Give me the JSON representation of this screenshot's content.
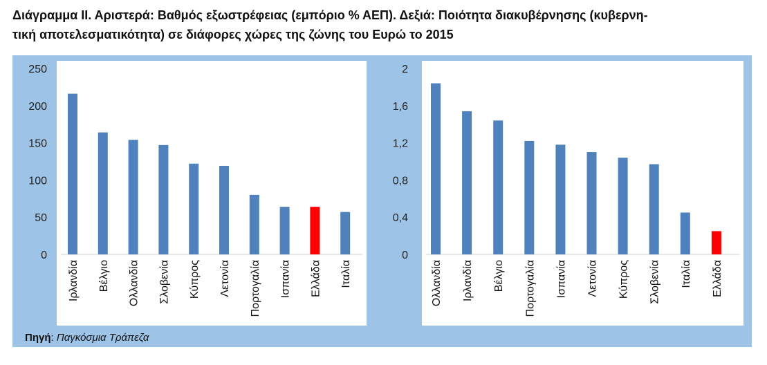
{
  "title": {
    "line1": "Διάγραμμα ΙΙ. Αριστερά: Βαθμός εξωστρέφειας (εμπόριο % ΑΕΠ). Δεξιά: Ποιότητα διακυβέρνησης (κυβερνη-",
    "line2": "τική αποτελεσματικότητα) σε διάφορες χώρες της ζώνης του Ευρώ το 2015"
  },
  "source": {
    "label": "Πηγή",
    "value": "Παγκόσμια Τράπεζα"
  },
  "colors": {
    "bar": "#4f81bd",
    "highlight": "#ff0000",
    "panel": "#9dc3e6",
    "plot": "#ffffff"
  },
  "chart_data": [
    {
      "type": "bar",
      "categories": [
        "Ιρλανδία",
        "Βέλγιο",
        "Ολλανδία",
        "Σλοβενία",
        "Κύπρος",
        "Λετονία",
        "Πορτογαλία",
        "Ισπανία",
        "Ελλάδα",
        "Ιταλία"
      ],
      "values": [
        216,
        164,
        154,
        147,
        122,
        119,
        80,
        64,
        64,
        57
      ],
      "highlight": "Ελλάδα",
      "ylim": [
        0,
        250
      ],
      "yticks": [
        0,
        50,
        100,
        150,
        200,
        250
      ],
      "ytick_labels": [
        "0",
        "50",
        "100",
        "150",
        "200",
        "250"
      ],
      "grid": false,
      "legend": "none"
    },
    {
      "type": "bar",
      "categories": [
        "Ολλανδία",
        "Ιρλανδία",
        "Βέλγιο",
        "Πορτογαλία",
        "Ισπανία",
        "Λετονία",
        "Κύπρος",
        "Σλοβενία",
        "Ιταλία",
        "Ελλάδα"
      ],
      "values": [
        1.84,
        1.54,
        1.44,
        1.22,
        1.18,
        1.1,
        1.04,
        0.97,
        0.45,
        0.25
      ],
      "highlight": "Ελλάδα",
      "ylim": [
        0,
        2
      ],
      "yticks": [
        0,
        0.4,
        0.8,
        1.2,
        1.6,
        2
      ],
      "ytick_labels": [
        "0",
        "0,4",
        "0,8",
        "1,2",
        "1,6",
        "2"
      ],
      "grid": false,
      "legend": "none"
    }
  ]
}
